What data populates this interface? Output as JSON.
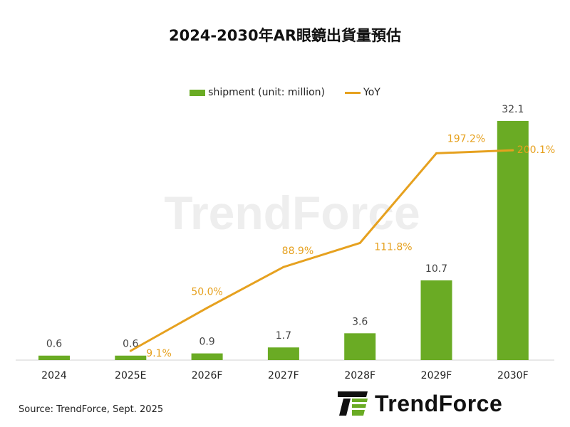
{
  "chart_data": {
    "type": "bar",
    "title": "2024-2030年AR眼鏡出貨量預估",
    "categories": [
      "2024",
      "2025E",
      "2026F",
      "2027F",
      "2028F",
      "2029F",
      "2030F"
    ],
    "series": [
      {
        "name": "shipment (unit: million)",
        "type": "bar",
        "color": "#6aab24",
        "values": [
          0.6,
          0.6,
          0.9,
          1.7,
          3.6,
          10.7,
          32.1
        ],
        "labels": [
          "0.6",
          "0.6",
          "0.9",
          "1.7",
          "3.6",
          "10.7",
          "32.1"
        ]
      },
      {
        "name": "YoY",
        "type": "line",
        "color": "#e6a11f",
        "values": [
          null,
          9.1,
          50.0,
          88.9,
          111.8,
          197.2,
          200.1
        ],
        "labels": [
          "",
          "9.1%",
          "50.0%",
          "88.9%",
          "111.8%",
          "197.2%",
          "200.1%"
        ]
      }
    ],
    "legend": "top",
    "grid": false
  },
  "source": "Source: TrendForce, Sept. 2025",
  "logo_text": "TrendForce",
  "watermark_text": "TrendForce"
}
